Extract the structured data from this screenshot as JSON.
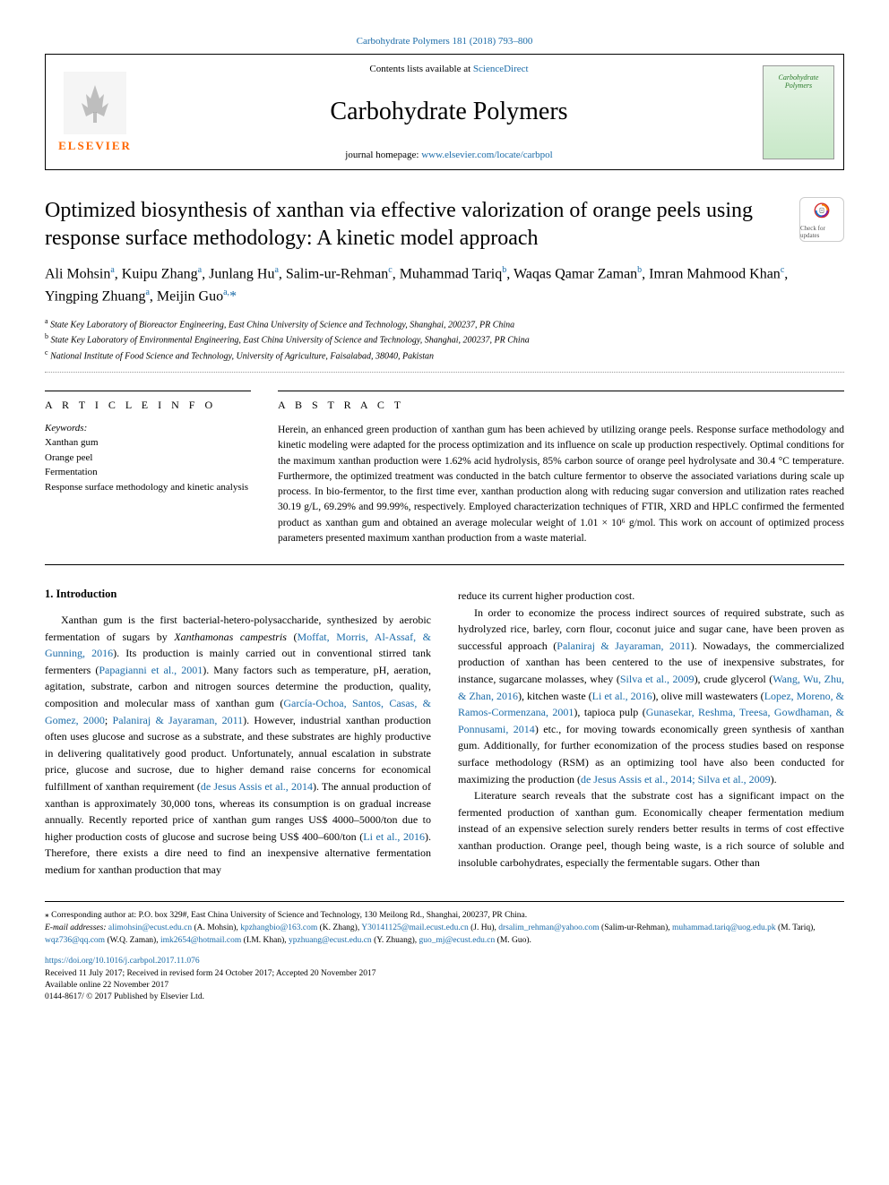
{
  "header": {
    "top_link_journal": "Carbohydrate Polymers 181 (2018) 793–800",
    "contents_prefix": "Contents lists available at ",
    "contents_link": "ScienceDirect",
    "journal_name": "Carbohydrate Polymers",
    "homepage_prefix": "journal homepage: ",
    "homepage_url": "www.elsevier.com/locate/carbpol",
    "elsevier_label": "ELSEVIER",
    "cover_text_1": "Carbohydrate",
    "cover_text_2": "Polymers",
    "check_updates_label": "Check for updates"
  },
  "article": {
    "title": "Optimized biosynthesis of xanthan via effective valorization of orange peels using response surface methodology: A kinetic model approach",
    "authors_html": "Ali Mohsin<sup>a</sup>, Kuipu Zhang<sup>a</sup>, Junlang Hu<sup>a</sup>, Salim-ur-Rehman<sup>c</sup>, Muhammad Tariq<sup>b</sup>, Waqas Qamar Zaman<sup>b</sup>, Imran Mahmood Khan<sup>c</sup>, Yingping Zhuang<sup>a</sup>, Meijin Guo<sup>a,</sup><span class='corr'>*</span>",
    "affiliations": [
      {
        "sup": "a",
        "text": "State Key Laboratory of Bioreactor Engineering, East China University of Science and Technology, Shanghai, 200237, PR China"
      },
      {
        "sup": "b",
        "text": "State Key Laboratory of Environmental Engineering, East China University of Science and Technology, Shanghai, 200237, PR China"
      },
      {
        "sup": "c",
        "text": "National Institute of Food Science and Technology, University of Agriculture, Faisalabad, 38040, Pakistan"
      }
    ]
  },
  "info": {
    "heading": "A R T I C L E  I N F O",
    "keywords_label": "Keywords:",
    "keywords": [
      "Xanthan gum",
      "Orange peel",
      "Fermentation",
      "Response surface methodology and kinetic analysis"
    ]
  },
  "abstract": {
    "heading": "A B S T R A C T",
    "text": "Herein, an enhanced green production of xanthan gum has been achieved by utilizing orange peels. Response surface methodology and kinetic modeling were adapted for the process optimization and its influence on scale up production respectively. Optimal conditions for the maximum xanthan production were 1.62% acid hydrolysis, 85% carbon source of orange peel hydrolysate and 30.4 °C temperature. Furthermore, the optimized treatment was conducted in the batch culture fermentor to observe the associated variations during scale up process. In bio-fermentor, to the first time ever, xanthan production along with reducing sugar conversion and utilization rates reached 30.19 g/L, 69.29% and 99.99%, respectively. Employed characterization techniques of FTIR, XRD and HPLC confirmed the fermented product as xanthan gum and obtained an average molecular weight of 1.01 × 10⁶ g/mol. This work on account of optimized process parameters presented maximum xanthan production from a waste material."
  },
  "body": {
    "intro_heading": "1. Introduction",
    "col1_html": "<p>Xanthan gum is the first bacterial-hetero-polysaccharide, synthesized by aerobic fermentation of sugars by <em>Xanthamonas campestris</em> (<a class='ref-link'>Moffat, Morris, Al-Assaf, &amp; Gunning, 2016</a>). Its production is mainly carried out in conventional stirred tank fermenters (<a class='ref-link'>Papagianni et al., 2001</a>). Many factors such as temperature, pH, aeration, agitation, substrate, carbon and nitrogen sources determine the production, quality, composition and molecular mass of xanthan gum (<a class='ref-link'>García-Ochoa, Santos, Casas, &amp; Gomez, 2000</a>; <a class='ref-link'>Palaniraj &amp; Jayaraman, 2011</a>). However, industrial xanthan production often uses glucose and sucrose as a substrate, and these substrates are highly productive in delivering qualitatively good product. Unfortunately, annual escalation in substrate price, glucose and sucrose, due to higher demand raise concerns for economical fulfillment of xanthan requirement (<a class='ref-link'>de Jesus Assis et al., 2014</a>). The annual production of xanthan is approximately 30,000 tons, whereas its consumption is on gradual increase annually. Recently reported price of xanthan gum ranges US$ 4000–5000/ton due to higher production costs of glucose and sucrose being US$ 400–600/ton (<a class='ref-link'>Li et al., 2016</a>). Therefore, there exists a dire need to find an inexpensive alternative fermentation medium for xanthan production that may</p>",
    "col2_html": "<p style='text-indent:0'>reduce its current higher production cost.</p><p>In order to economize the process indirect sources of required substrate, such as hydrolyzed rice, barley, corn flour, coconut juice and sugar cane, have been proven as successful approach (<a class='ref-link'>Palaniraj &amp; Jayaraman, 2011</a>). Nowadays, the commercialized production of xanthan has been centered to the use of inexpensive substrates, for instance, sugarcane molasses, whey (<a class='ref-link'>Silva et al., 2009</a>), crude glycerol (<a class='ref-link'>Wang, Wu, Zhu, &amp; Zhan, 2016</a>), kitchen waste (<a class='ref-link'>Li et al., 2016</a>), olive mill wastewaters (<a class='ref-link'>Lopez, Moreno, &amp; Ramos-Cormenzana, 2001</a>), tapioca pulp (<a class='ref-link'>Gunasekar, Reshma, Treesa, Gowdhaman, &amp; Ponnusami, 2014</a>) etc., for moving towards economically green synthesis of xanthan gum. Additionally, for further economization of the process studies based on response surface methodology (RSM) as an optimizing tool have also been conducted for maximizing the production (<a class='ref-link'>de Jesus Assis et al., 2014; Silva et al., 2009</a>).</p><p>Literature search reveals that the substrate cost has a significant impact on the fermented production of xanthan gum. Economically cheaper fermentation medium instead of an expensive selection surely renders better results in terms of cost effective xanthan production. Orange peel, though being waste, is a rich source of soluble and insoluble carbohydrates, especially the fermentable sugars. Other than</p>"
  },
  "footnotes": {
    "corr_line": "⁎ Corresponding author at: P.O. box 329#, East China University of Science and Technology, 130 Meilong Rd., Shanghai, 200237, PR China.",
    "email_label": "E-mail addresses: ",
    "emails_html": "<a>alimohsin@ecust.edu.cn</a> (A. Mohsin), <a>kpzhangbio@163.com</a> (K. Zhang), <a>Y30141125@mail.ecust.edu.cn</a> (J. Hu), <a>drsalim_rehman@yahoo.com</a> (Salim-ur-Rehman), <a>muhammad.tariq@uog.edu.pk</a> (M. Tariq), <a>wqz736@qq.com</a> (W.Q. Zaman), <a>imk2654@hotmail.com</a> (I.M. Khan), <a>ypzhuang@ecust.edu.cn</a> (Y. Zhuang), <a>guo_mj@ecust.edu.cn</a> (M. Guo)."
  },
  "doi": {
    "url": "https://doi.org/10.1016/j.carbpol.2017.11.076",
    "received": "Received 11 July 2017; Received in revised form 24 October 2017; Accepted 20 November 2017",
    "available": "Available online 22 November 2017",
    "copyright": "0144-8617/ © 2017 Published by Elsevier Ltd."
  },
  "colors": {
    "link": "#1a6ba8",
    "elsevier_orange": "#ff6600",
    "text": "#000000",
    "background": "#ffffff"
  }
}
